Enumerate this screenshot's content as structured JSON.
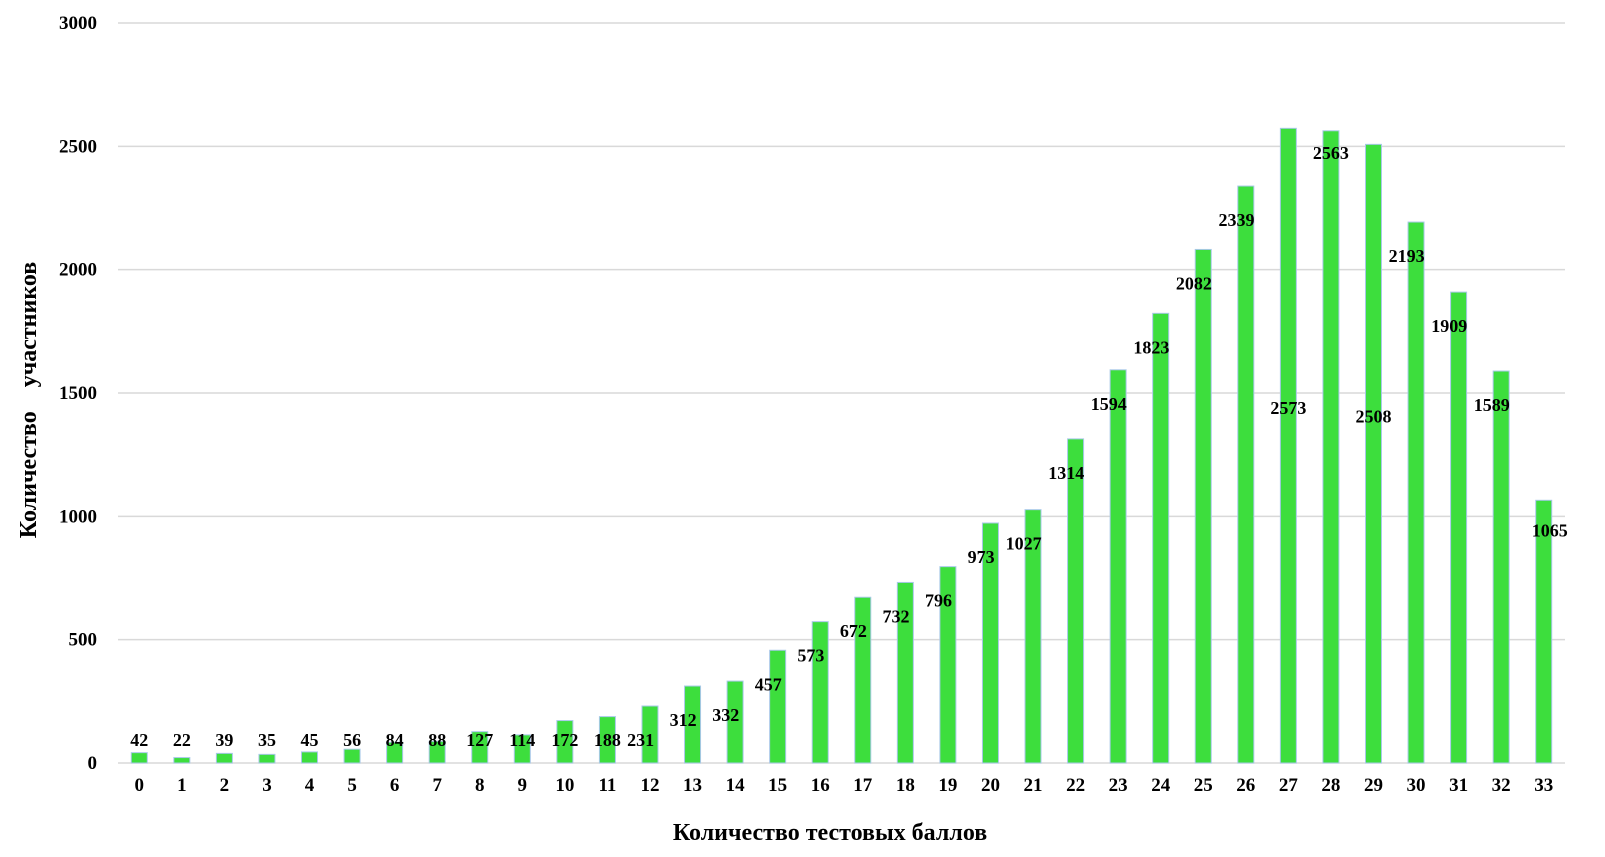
{
  "chart_data": {
    "type": "bar",
    "categories": [
      "0",
      "1",
      "2",
      "3",
      "4",
      "5",
      "6",
      "7",
      "8",
      "9",
      "10",
      "11",
      "12",
      "13",
      "14",
      "15",
      "16",
      "17",
      "18",
      "19",
      "20",
      "21",
      "22",
      "23",
      "24",
      "25",
      "26",
      "27",
      "28",
      "29",
      "30",
      "31",
      "32",
      "33"
    ],
    "series": [
      {
        "values": [
          42,
          22,
          39,
          35,
          45,
          56,
          84,
          88,
          127,
          114,
          172,
          188,
          231,
          312,
          332,
          457,
          573,
          672,
          732,
          796,
          973,
          1027,
          1314,
          1594,
          1823,
          2082,
          2339,
          2573,
          2563,
          2508,
          2193,
          1909,
          1589,
          1065
        ],
        "data_labels": [
          "42",
          "22",
          "39",
          "35",
          "45",
          "56",
          "84",
          "88",
          "127",
          "114",
          "172",
          "188",
          "231",
          "312",
          "332",
          "457",
          "573",
          "672",
          "732",
          "796",
          "973",
          "1027",
          "1314",
          "1594",
          "1823",
          "2082",
          "2339",
          "2573",
          "2563",
          "2508",
          "2193",
          "1909",
          "1589",
          "1065"
        ]
      }
    ],
    "title": "",
    "xlabel": "Количество тестовых баллов",
    "ylabel": "Количество    участников",
    "ylim": [
      0,
      3000
    ],
    "yticks": [
      "0",
      "500",
      "1000",
      "1500",
      "2000",
      "2500",
      "3000"
    ],
    "grid": true,
    "legend": "none",
    "colors": {
      "bar": "#3dde3d",
      "bar_edge": "#a8c8e8",
      "grid": "#d9d9d9"
    }
  }
}
